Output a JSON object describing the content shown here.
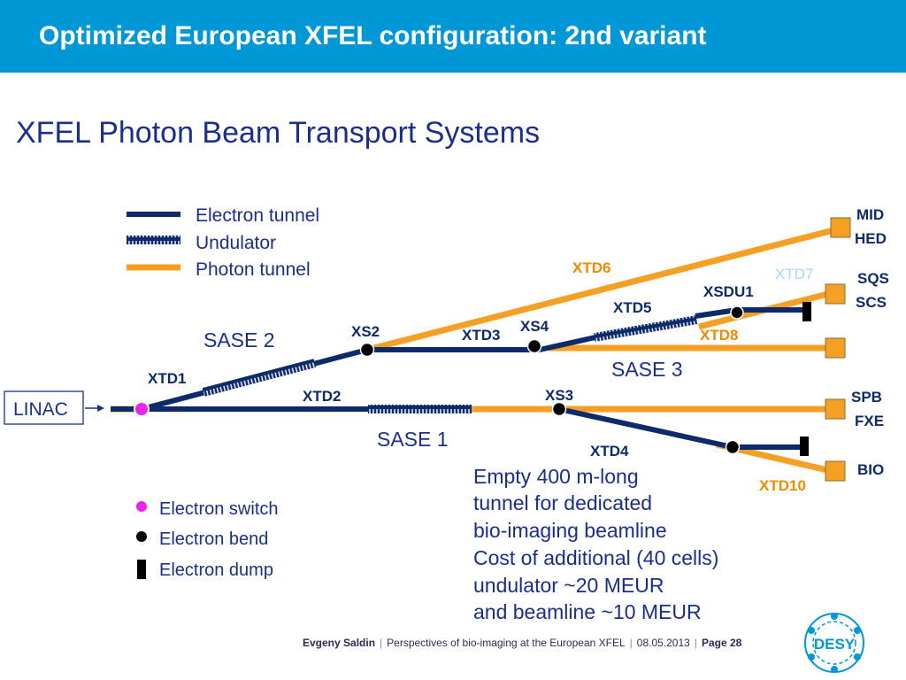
{
  "header": {
    "title": "Optimized European XFEL  configuration: 2nd variant"
  },
  "subtitle": "XFEL Photon Beam Transport Systems",
  "legend": {
    "electron_tunnel": "Electron tunnel",
    "undulator": "Undulator",
    "photon_tunnel": "Photon tunnel",
    "electron_switch": "Electron switch",
    "electron_bend": "Electron bend",
    "electron_dump": "Electron dump"
  },
  "diagram": {
    "linac": "LINAC",
    "sase1": "SASE 1",
    "sase2": "SASE 2",
    "sase3": "SASE 3",
    "xtd1": "XTD1",
    "xtd2": "XTD2",
    "xtd3": "XTD3",
    "xtd4": "XTD4",
    "xtd5": "XTD5",
    "xtd6": "XTD6",
    "xtd7": "XTD7",
    "xtd8": "XTD8",
    "xtd10": "XTD10",
    "xs2": "XS2",
    "xs3": "XS3",
    "xs4": "XS4",
    "xsdu1": "XSDU1",
    "stations": {
      "mid": "MID",
      "hed": "HED",
      "sqs": "SQS",
      "scs": "SCS",
      "spb": "SPB",
      "fxe": "FXE",
      "bio": "BIO"
    }
  },
  "note": [
    "Empty 400 m-long",
    "tunnel  for dedicated",
    "bio-imaging beamline",
    "Cost of additional (40 cells)",
    "undulator ~20 MEUR",
    "and beamline ~10 MEUR"
  ],
  "footer": {
    "author": "Evgeny Saldin",
    "talk": "Perspectives of bio-imaging at the European XFEL",
    "date": "08.05.2013",
    "page": "Page 28"
  },
  "logo": {
    "text": "DESY"
  },
  "colors": {
    "header": "#0097d7",
    "electron": "#0d2a6b",
    "photon": "#f4a024",
    "switch": "#ee22ee",
    "label_orange": "#f08a00",
    "label_faded": "#a8d8ee"
  }
}
